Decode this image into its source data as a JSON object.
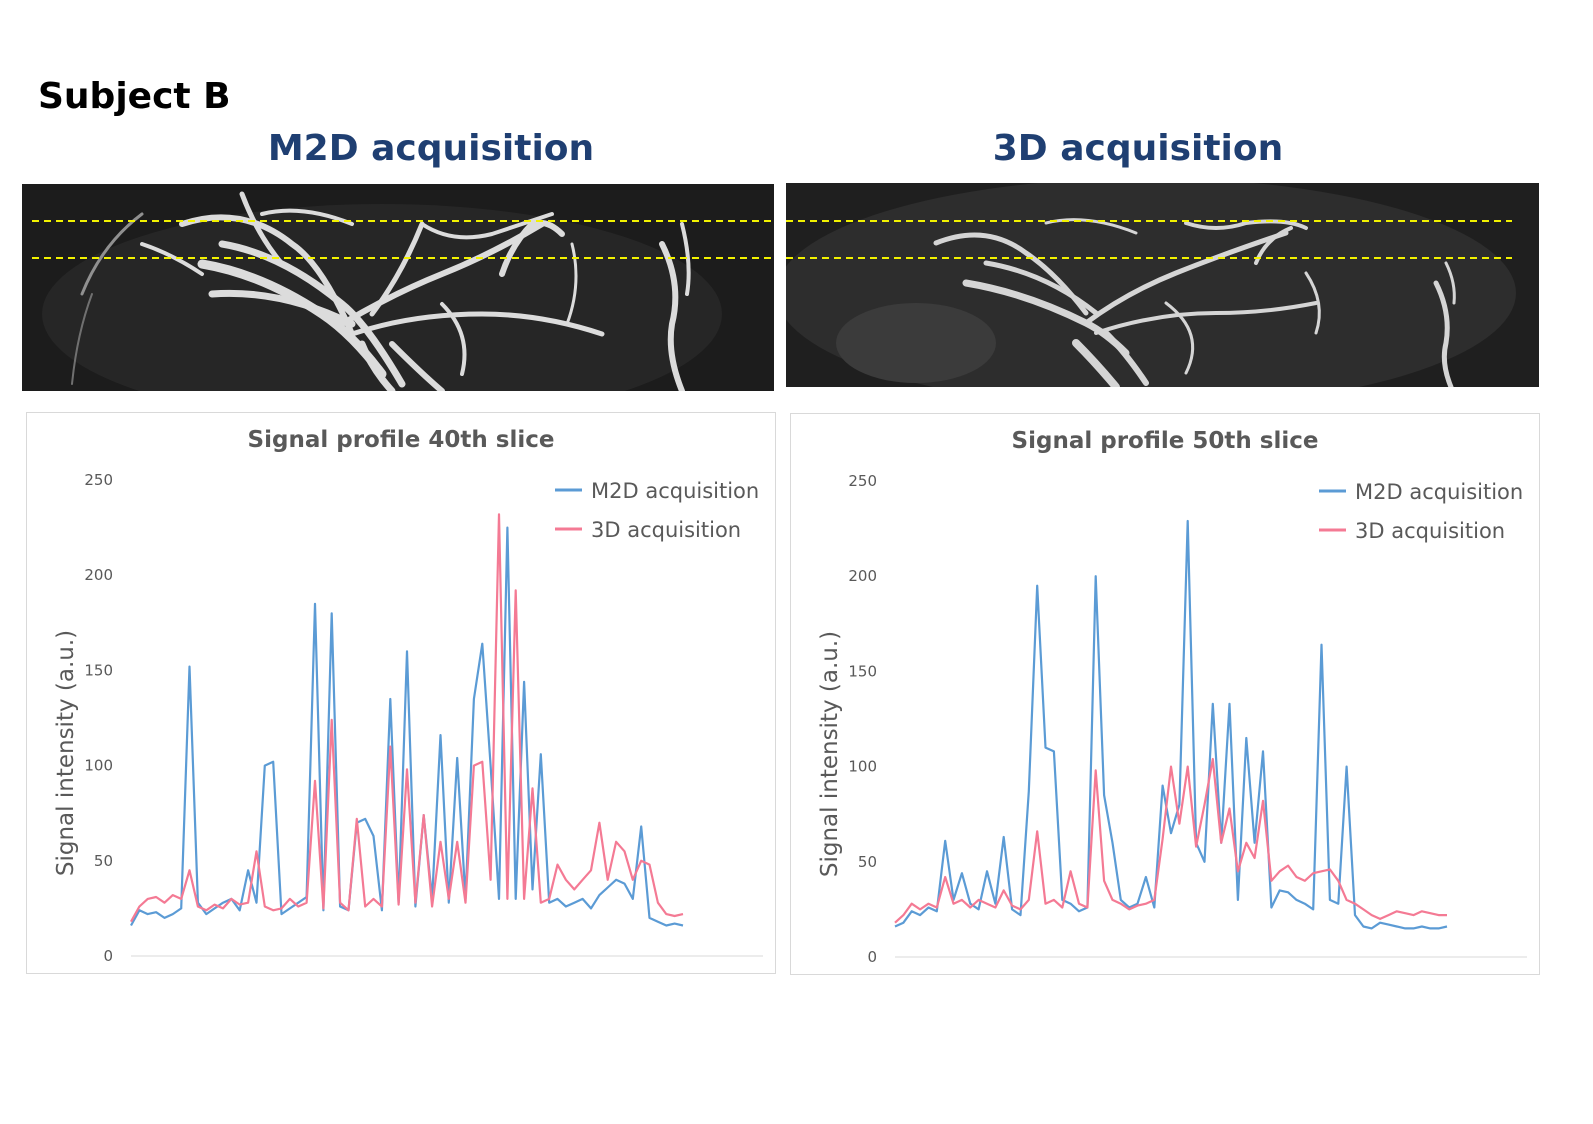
{
  "subject_title": "Subject B",
  "panels": [
    {
      "title": "M2D acquisition"
    },
    {
      "title": "3D acquisition"
    }
  ],
  "colors": {
    "m2d": "#5b9bd5",
    "d3": "#f47a94",
    "guide": "#f2f200",
    "title_blue": "#1f3f72"
  },
  "chart_data": [
    {
      "type": "line",
      "title": "Signal profile 40th slice",
      "xlabel": "",
      "ylabel": "Signal intensity (a.u.)",
      "ylim": [
        0,
        250
      ],
      "yticks": [
        0,
        50,
        100,
        150,
        200,
        250
      ],
      "x": [
        0,
        3,
        6,
        9,
        12,
        15,
        18,
        21,
        24,
        27,
        30,
        33,
        36,
        39,
        42,
        45,
        48,
        51,
        54,
        57,
        60,
        63,
        66,
        69,
        72,
        75,
        78,
        81,
        84,
        87,
        90,
        93,
        96,
        99,
        102,
        105,
        108,
        111,
        114,
        117,
        120,
        123,
        126,
        129,
        132,
        135,
        138,
        141,
        144,
        147,
        150,
        153,
        156,
        159,
        162,
        165,
        168,
        171,
        174,
        177,
        180,
        183,
        186,
        189,
        192,
        195,
        198
      ],
      "legend_position": "top-right",
      "series": [
        {
          "name": "M2D acquisition",
          "values": [
            16,
            24,
            22,
            23,
            20,
            22,
            25,
            152,
            28,
            22,
            25,
            28,
            30,
            24,
            45,
            28,
            100,
            102,
            22,
            25,
            28,
            31,
            185,
            24,
            180,
            26,
            24,
            70,
            72,
            63,
            24,
            135,
            28,
            160,
            26,
            74,
            30,
            116,
            28,
            104,
            30,
            135,
            164,
            100,
            30,
            225,
            30,
            144,
            35,
            106,
            28,
            30,
            26,
            28,
            30,
            25,
            32,
            36,
            40,
            38,
            30,
            68,
            20,
            18,
            16,
            17,
            16
          ]
        },
        {
          "name": "3D acquisition",
          "values": [
            18,
            26,
            30,
            31,
            28,
            32,
            30,
            45,
            26,
            24,
            27,
            25,
            30,
            27,
            28,
            55,
            26,
            24,
            25,
            30,
            26,
            28,
            92,
            25,
            124,
            28,
            24,
            72,
            26,
            30,
            26,
            110,
            27,
            98,
            28,
            74,
            26,
            60,
            30,
            60,
            28,
            100,
            102,
            40,
            232,
            30,
            192,
            30,
            88,
            28,
            30,
            48,
            40,
            35,
            40,
            45,
            70,
            40,
            60,
            55,
            40,
            50,
            48,
            28,
            22,
            21,
            22
          ]
        }
      ]
    },
    {
      "type": "line",
      "title": "Signal profile 50th slice",
      "xlabel": "",
      "ylabel": "Signal intensity (a.u.)",
      "ylim": [
        0,
        250
      ],
      "yticks": [
        0,
        50,
        100,
        150,
        200,
        250
      ],
      "x": [
        0,
        3,
        6,
        9,
        12,
        15,
        18,
        21,
        24,
        27,
        30,
        33,
        36,
        39,
        42,
        45,
        48,
        51,
        54,
        57,
        60,
        63,
        66,
        69,
        72,
        75,
        78,
        81,
        84,
        87,
        90,
        93,
        96,
        99,
        102,
        105,
        108,
        111,
        114,
        117,
        120,
        123,
        126,
        129,
        132,
        135,
        138,
        141,
        144,
        147,
        150,
        153,
        156,
        159,
        162,
        165,
        168,
        171,
        174,
        177,
        180,
        183,
        186,
        189,
        192,
        195,
        198
      ],
      "legend_position": "top-right",
      "series": [
        {
          "name": "M2D acquisition",
          "values": [
            16,
            18,
            24,
            22,
            26,
            24,
            61,
            30,
            44,
            28,
            25,
            45,
            28,
            63,
            25,
            22,
            87,
            195,
            110,
            108,
            30,
            28,
            24,
            26,
            200,
            85,
            60,
            30,
            26,
            28,
            42,
            26,
            90,
            65,
            80,
            229,
            60,
            50,
            133,
            60,
            133,
            30,
            115,
            60,
            108,
            26,
            35,
            34,
            30,
            28,
            25,
            164,
            30,
            28,
            100,
            22,
            16,
            15,
            18,
            17,
            16,
            15,
            15,
            16,
            15,
            15,
            16
          ]
        },
        {
          "name": "3D acquisition",
          "values": [
            18,
            22,
            28,
            25,
            28,
            26,
            42,
            28,
            30,
            26,
            30,
            28,
            26,
            35,
            27,
            25,
            30,
            66,
            28,
            30,
            26,
            45,
            28,
            26,
            98,
            40,
            30,
            28,
            25,
            27,
            28,
            30,
            62,
            100,
            70,
            100,
            58,
            80,
            104,
            60,
            78,
            45,
            60,
            52,
            82,
            40,
            45,
            48,
            42,
            40,
            44,
            45,
            46,
            40,
            30,
            28,
            25,
            22,
            20,
            22,
            24,
            23,
            22,
            24,
            23,
            22,
            22
          ]
        }
      ]
    }
  ]
}
